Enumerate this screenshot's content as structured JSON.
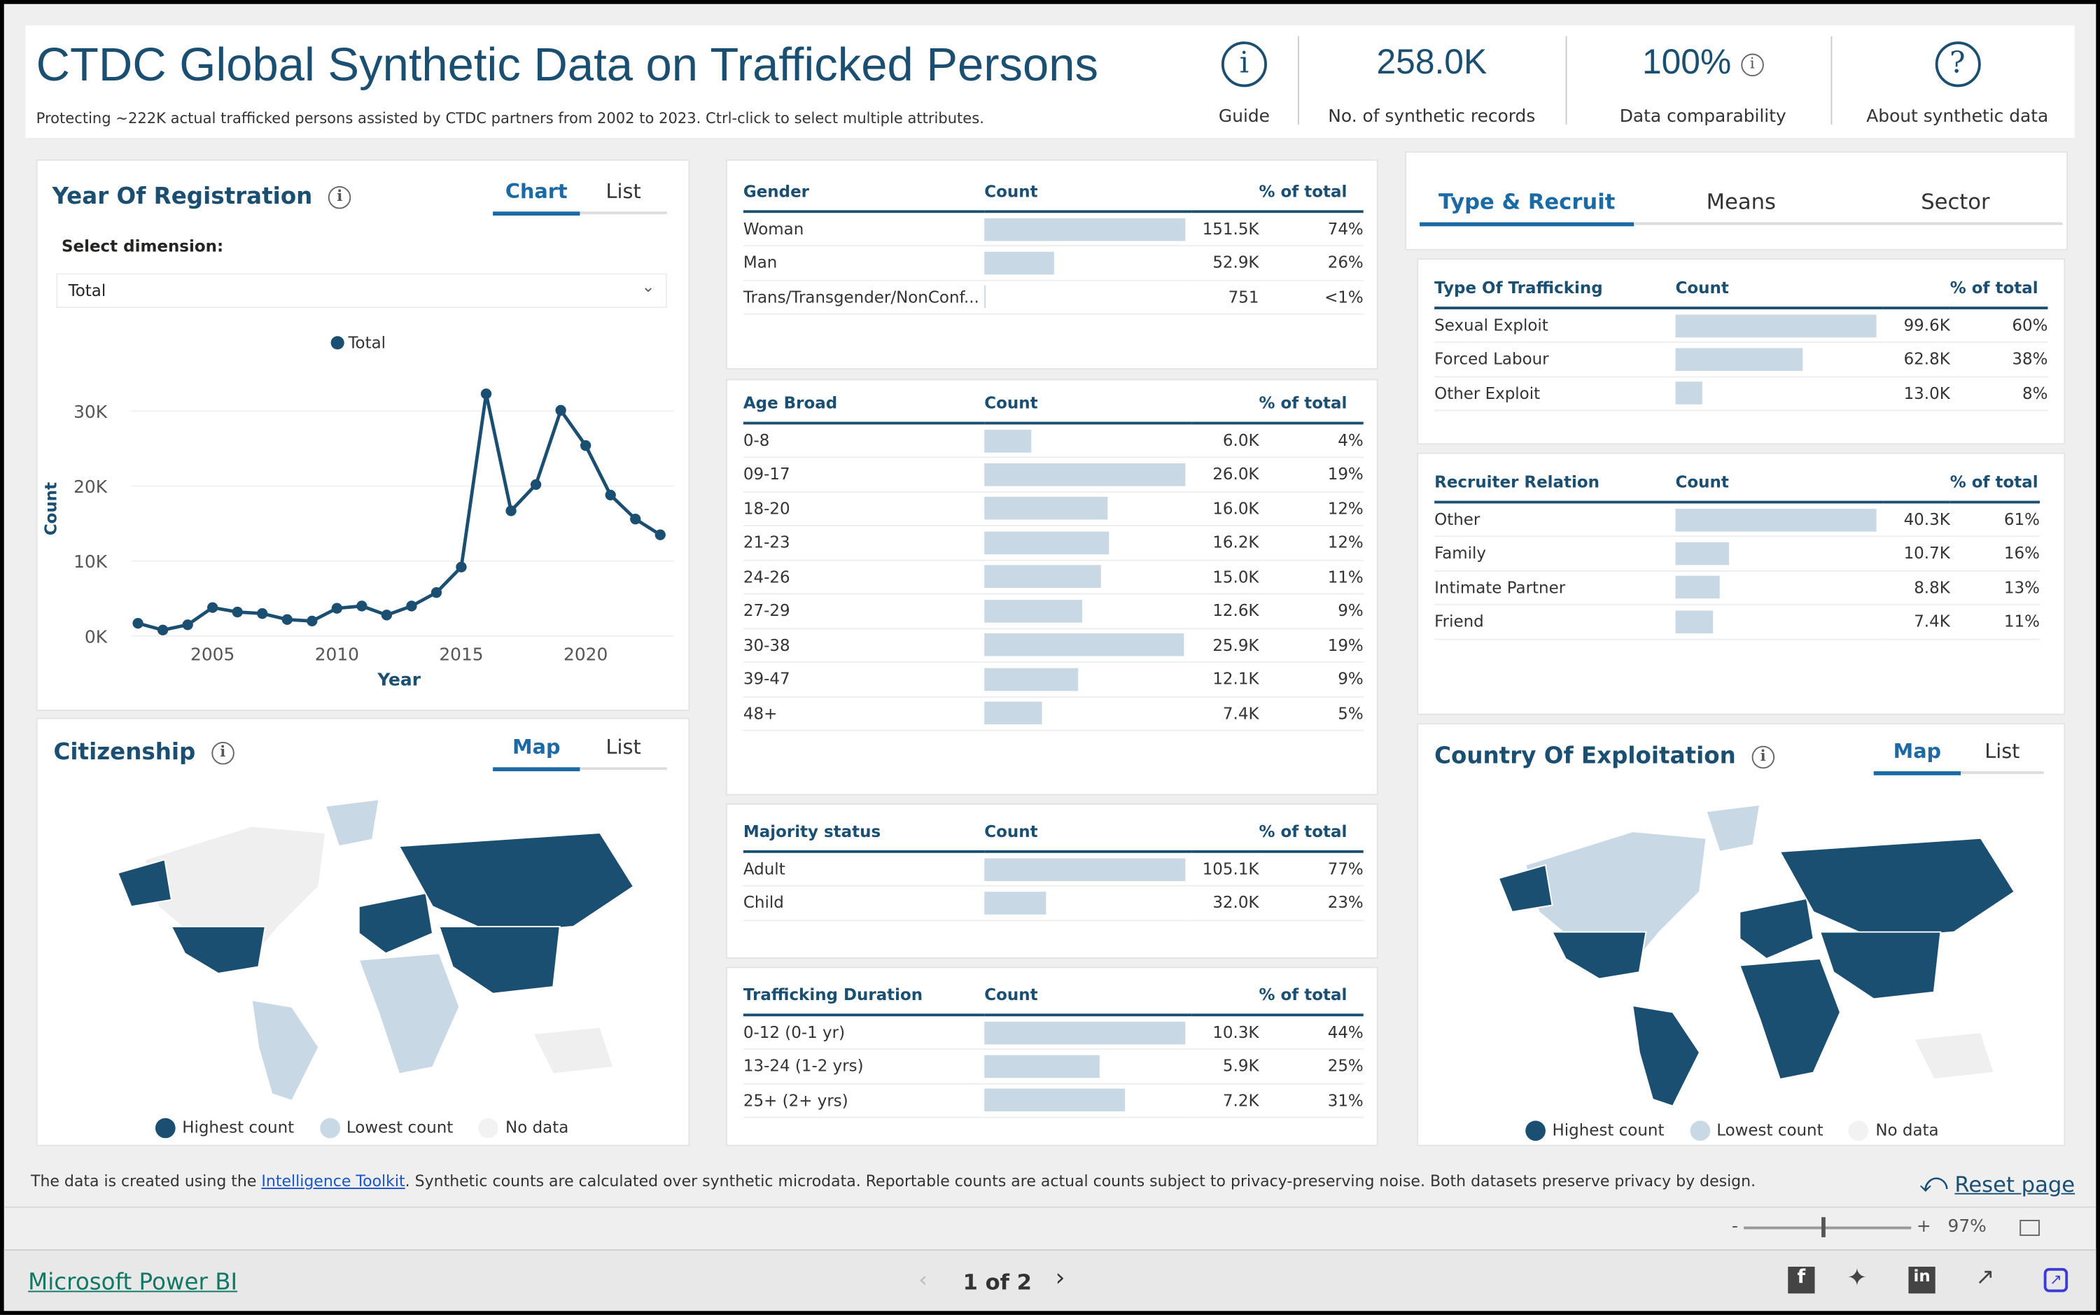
{
  "header": {
    "title": "CTDC Global Synthetic Data on Trafficked Persons",
    "subtitle": "Protecting ~222K actual trafficked persons assisted by CTDC partners from 2002 to 2023. Ctrl-click to select multiple attributes.",
    "guide_label": "Guide",
    "records_value": "258.0K",
    "records_label": "No. of synthetic records",
    "comparability_value": "100%",
    "comparability_label": "Data comparability",
    "about_label": "About synthetic data"
  },
  "year_panel": {
    "title": "Year Of Registration",
    "tabs": [
      "Chart",
      "List"
    ],
    "active_tab": "Chart",
    "dimension_label": "Select dimension:",
    "dimension_value": "Total"
  },
  "chart_data": {
    "type": "line",
    "title": "",
    "xlabel": "Year",
    "ylabel": "Count",
    "legend": [
      "Total"
    ],
    "legend_position": "top",
    "grid": true,
    "ylim": [
      0,
      33000
    ],
    "yticks": [
      "0K",
      "10K",
      "20K",
      "30K"
    ],
    "xticks": [
      "2005",
      "2010",
      "2015",
      "2020"
    ],
    "series": [
      {
        "name": "Total",
        "color": "#1b4f72",
        "x": [
          2002,
          2003,
          2004,
          2005,
          2006,
          2007,
          2008,
          2009,
          2010,
          2011,
          2012,
          2013,
          2014,
          2015,
          2016,
          2017,
          2018,
          2019,
          2020,
          2021,
          2022,
          2023
        ],
        "values": [
          1700,
          800,
          1500,
          3800,
          3200,
          3000,
          2200,
          2000,
          3700,
          4000,
          2800,
          4000,
          5800,
          9200,
          32300,
          16700,
          20200,
          30100,
          25400,
          18800,
          15600,
          13500
        ]
      }
    ]
  },
  "citizenship": {
    "title": "Citizenship",
    "tabs": [
      "Map",
      "List"
    ],
    "active_tab": "Map",
    "legend": [
      "Highest count",
      "Lowest count",
      "No data"
    ]
  },
  "gender": {
    "headers": [
      "Gender",
      "Count",
      "% of total"
    ],
    "rows": [
      {
        "label": "Woman",
        "count": "151.5K",
        "pct": "74%"
      },
      {
        "label": "Man",
        "count": "52.9K",
        "pct": "26%"
      },
      {
        "label": "Trans/Transgender/NonConf...",
        "count": "751",
        "pct": "<1%"
      }
    ]
  },
  "age": {
    "headers": [
      "Age Broad",
      "Count",
      "% of total"
    ],
    "rows": [
      {
        "label": "0-8",
        "count": "6.0K",
        "pct": "4%"
      },
      {
        "label": "09-17",
        "count": "26.0K",
        "pct": "19%"
      },
      {
        "label": "18-20",
        "count": "16.0K",
        "pct": "12%"
      },
      {
        "label": "21-23",
        "count": "16.2K",
        "pct": "12%"
      },
      {
        "label": "24-26",
        "count": "15.0K",
        "pct": "11%"
      },
      {
        "label": "27-29",
        "count": "12.6K",
        "pct": "9%"
      },
      {
        "label": "30-38",
        "count": "25.9K",
        "pct": "19%"
      },
      {
        "label": "39-47",
        "count": "12.1K",
        "pct": "9%"
      },
      {
        "label": "48+",
        "count": "7.4K",
        "pct": "5%"
      }
    ]
  },
  "majority": {
    "headers": [
      "Majority status",
      "Count",
      "% of total"
    ],
    "rows": [
      {
        "label": "Adult",
        "count": "105.1K",
        "pct": "77%"
      },
      {
        "label": "Child",
        "count": "32.0K",
        "pct": "23%"
      }
    ]
  },
  "duration": {
    "headers": [
      "Trafficking Duration",
      "Count",
      "% of total"
    ],
    "rows": [
      {
        "label": "0-12 (0-1 yr)",
        "count": "10.3K",
        "pct": "44%"
      },
      {
        "label": "13-24 (1-2 yrs)",
        "count": "5.9K",
        "pct": "25%"
      },
      {
        "label": "25+ (2+ yrs)",
        "count": "7.2K",
        "pct": "31%"
      }
    ]
  },
  "right_tabs": {
    "items": [
      "Type & Recruit",
      "Means",
      "Sector"
    ],
    "active": "Type & Recruit"
  },
  "type": {
    "headers": [
      "Type Of Trafficking",
      "Count",
      "% of total"
    ],
    "rows": [
      {
        "label": "Sexual Exploit",
        "count": "99.6K",
        "pct": "60%"
      },
      {
        "label": "Forced Labour",
        "count": "62.8K",
        "pct": "38%"
      },
      {
        "label": "Other Exploit",
        "count": "13.0K",
        "pct": "8%"
      }
    ]
  },
  "recruiter": {
    "headers": [
      "Recruiter Relation",
      "Count",
      "% of total"
    ],
    "rows": [
      {
        "label": "Other",
        "count": "40.3K",
        "pct": "61%"
      },
      {
        "label": "Family",
        "count": "10.7K",
        "pct": "16%"
      },
      {
        "label": "Intimate Partner",
        "count": "8.8K",
        "pct": "13%"
      },
      {
        "label": "Friend",
        "count": "7.4K",
        "pct": "11%"
      }
    ]
  },
  "exploitation": {
    "title": "Country Of Exploitation",
    "tabs": [
      "Map",
      "List"
    ],
    "active_tab": "Map",
    "legend": [
      "Highest count",
      "Lowest count",
      "No data"
    ]
  },
  "colors": {
    "accent": "#1b4f72",
    "highest": "#1b4f72",
    "lowest": "#c8d8e4",
    "nodata": "#efefef",
    "bar": "#c8d8e4"
  },
  "footer": {
    "text_before": "The data is created using the ",
    "link": "Intelligence Toolkit",
    "text_after": ". Synthetic counts are calculated over synthetic microdata. Reportable counts are actual counts subject to privacy-preserving noise. Both datasets preserve privacy by design.",
    "reset": "Reset page",
    "zoom": "97%",
    "zoom_minus": "-",
    "zoom_plus": "+",
    "brand": "Microsoft Power BI",
    "page": "1 of 2"
  }
}
